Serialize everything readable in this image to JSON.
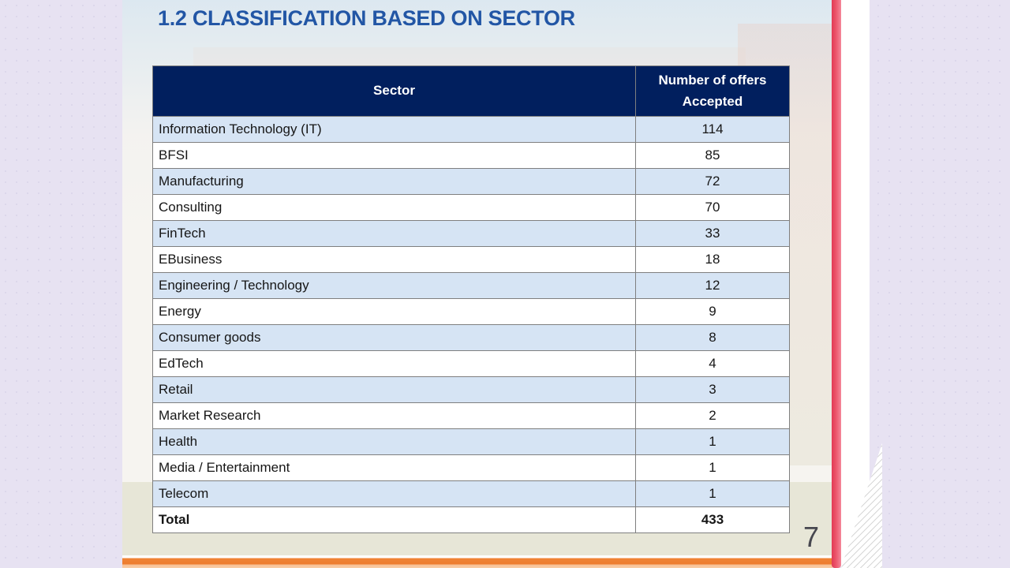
{
  "title": "1.2 CLASSIFICATION BASED ON SECTOR",
  "page_number": "7",
  "table": {
    "headers": [
      "Sector",
      "Number of offers Accepted"
    ],
    "rows": [
      {
        "sector": "Information Technology (IT)",
        "offers": "114"
      },
      {
        "sector": "BFSI",
        "offers": "85"
      },
      {
        "sector": "Manufacturing",
        "offers": "72"
      },
      {
        "sector": "Consulting",
        "offers": "70"
      },
      {
        "sector": "FinTech",
        "offers": "33"
      },
      {
        "sector": "EBusiness",
        "offers": "18"
      },
      {
        "sector": "Engineering / Technology",
        "offers": "12"
      },
      {
        "sector": "Energy",
        "offers": "9"
      },
      {
        "sector": "Consumer goods",
        "offers": "8"
      },
      {
        "sector": "EdTech",
        "offers": "4"
      },
      {
        "sector": "Retail",
        "offers": "3"
      },
      {
        "sector": "Market Research",
        "offers": "2"
      },
      {
        "sector": "Health",
        "offers": "1"
      },
      {
        "sector": "Media / Entertainment",
        "offers": "1"
      },
      {
        "sector": "Telecom",
        "offers": "1"
      }
    ],
    "total_row": {
      "sector": "Total",
      "offers": "433"
    }
  },
  "chart_data": {
    "type": "table",
    "title": "1.2 Classification Based on Sector",
    "categories": [
      "Information Technology (IT)",
      "BFSI",
      "Manufacturing",
      "Consulting",
      "FinTech",
      "EBusiness",
      "Engineering / Technology",
      "Energy",
      "Consumer goods",
      "EdTech",
      "Retail",
      "Market Research",
      "Health",
      "Media / Entertainment",
      "Telecom"
    ],
    "values": [
      114,
      85,
      72,
      70,
      33,
      18,
      12,
      9,
      8,
      4,
      3,
      2,
      1,
      1,
      1
    ],
    "total": 433
  },
  "colors": {
    "header_bg": "#011f5e",
    "row_alt_bg": "#d6e4f4",
    "title_blue": "#2256a5",
    "accent_red": "#ec556b",
    "accent_orange": "#ef8335",
    "page_bg": "#e7e2f2"
  }
}
